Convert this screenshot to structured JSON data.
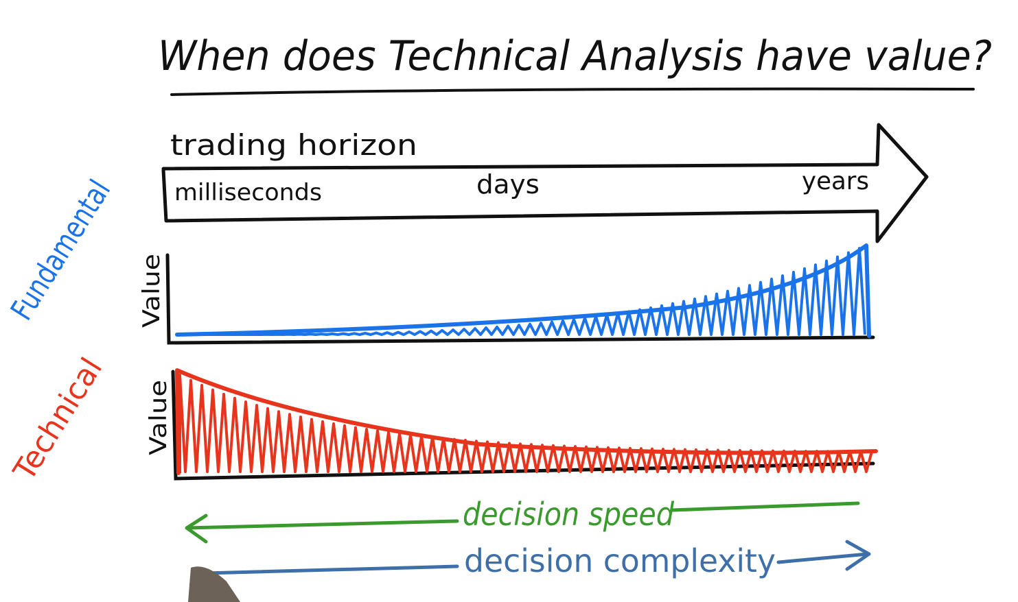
{
  "title": "When does Technical Analysis have value?",
  "horizon": {
    "label": "trading horizon",
    "ticks": [
      "milliseconds",
      "days",
      "years"
    ]
  },
  "fundamental": {
    "side_label": "Fundamental",
    "axis_label": "Value",
    "color": "#1a73e8"
  },
  "technical": {
    "side_label": "Technical",
    "axis_label": "Value",
    "color": "#e8341c"
  },
  "arrows": {
    "speed": {
      "label": "decision speed",
      "color": "#3a9a2e"
    },
    "complexity": {
      "label": "decision complexity",
      "color": "#3f6fa8"
    }
  },
  "ink": "#111111"
}
